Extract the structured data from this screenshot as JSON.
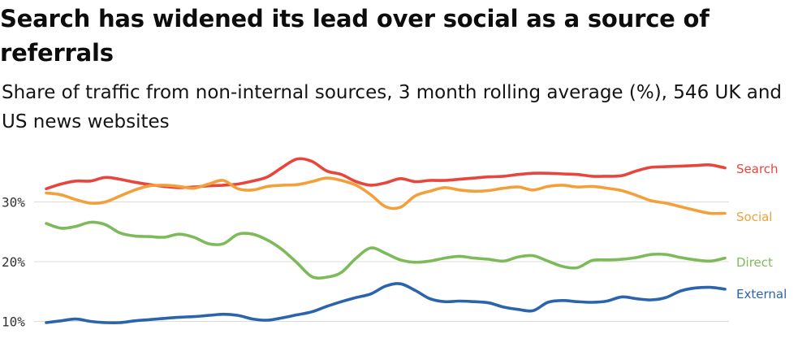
{
  "title": "Search has widened its lead over social as a source of referrals",
  "subtitle": "Share of traffic from non-internal sources, 3 month rolling average (%), 546 UK and US news websites",
  "colors": {
    "Search": "#e8453c",
    "Social": "#f3a03b",
    "Direct": "#7dbb5a",
    "External": "#2a64ad",
    "grid": "#dcdcdc"
  },
  "chart_data": {
    "type": "line",
    "title": "Search has widened its lead over social as a source of referrals",
    "subtitle": "Share of traffic from non-internal sources, 3 month rolling average (%), 546 UK and US news websites",
    "xlabel": "",
    "ylabel": "",
    "ylim": [
      9,
      38
    ],
    "yticks": [
      10,
      20,
      30
    ],
    "ytick_labels": [
      "10%",
      "20%",
      "30%"
    ],
    "grid": "horizontal",
    "legend": "direct labels at right end of lines",
    "series": [
      {
        "name": "Search",
        "values": [
          32.2,
          33.0,
          33.5,
          33.5,
          34.1,
          33.8,
          33.3,
          32.9,
          32.6,
          32.4,
          32.5,
          32.7,
          32.8,
          33.0,
          33.5,
          34.2,
          35.8,
          37.2,
          36.8,
          35.2,
          34.6,
          33.4,
          32.8,
          33.2,
          33.9,
          33.4,
          33.6,
          33.6,
          33.8,
          34.0,
          34.2,
          34.3,
          34.6,
          34.8,
          34.8,
          34.7,
          34.6,
          34.3,
          34.3,
          34.4,
          35.2,
          35.8,
          35.9,
          36.0,
          36.1,
          36.2,
          35.7
        ]
      },
      {
        "name": "Social",
        "values": [
          31.5,
          31.2,
          30.4,
          29.8,
          30.0,
          31.0,
          32.0,
          32.7,
          32.8,
          32.6,
          32.3,
          33.0,
          33.6,
          32.2,
          32.0,
          32.6,
          32.8,
          32.9,
          33.4,
          34.0,
          33.6,
          32.8,
          31.2,
          29.2,
          29.1,
          31.0,
          31.8,
          32.4,
          32.0,
          31.8,
          31.9,
          32.3,
          32.5,
          32.0,
          32.6,
          32.8,
          32.5,
          32.6,
          32.3,
          31.9,
          31.1,
          30.2,
          29.8,
          29.2,
          28.6,
          28.1,
          28.1
        ]
      },
      {
        "name": "Direct",
        "values": [
          26.4,
          25.6,
          25.9,
          26.6,
          26.2,
          24.8,
          24.3,
          24.2,
          24.1,
          24.6,
          24.1,
          23.0,
          23.0,
          24.6,
          24.6,
          23.6,
          22.0,
          19.8,
          17.5,
          17.4,
          18.2,
          20.6,
          22.3,
          21.4,
          20.3,
          19.9,
          20.1,
          20.6,
          20.9,
          20.6,
          20.4,
          20.1,
          20.8,
          21.0,
          20.1,
          19.2,
          19.0,
          20.2,
          20.3,
          20.4,
          20.7,
          21.2,
          21.2,
          20.7,
          20.3,
          20.1,
          20.6
        ]
      },
      {
        "name": "External",
        "values": [
          9.8,
          10.1,
          10.4,
          10.0,
          9.8,
          9.8,
          10.1,
          10.3,
          10.5,
          10.7,
          10.8,
          11.0,
          11.2,
          11.0,
          10.4,
          10.2,
          10.6,
          11.1,
          11.6,
          12.5,
          13.3,
          14.0,
          14.6,
          15.9,
          16.3,
          15.2,
          13.8,
          13.3,
          13.4,
          13.3,
          13.1,
          12.4,
          12.0,
          11.8,
          13.2,
          13.5,
          13.3,
          13.2,
          13.4,
          14.1,
          13.8,
          13.6,
          14.0,
          15.1,
          15.6,
          15.7,
          15.4
        ]
      }
    ]
  }
}
